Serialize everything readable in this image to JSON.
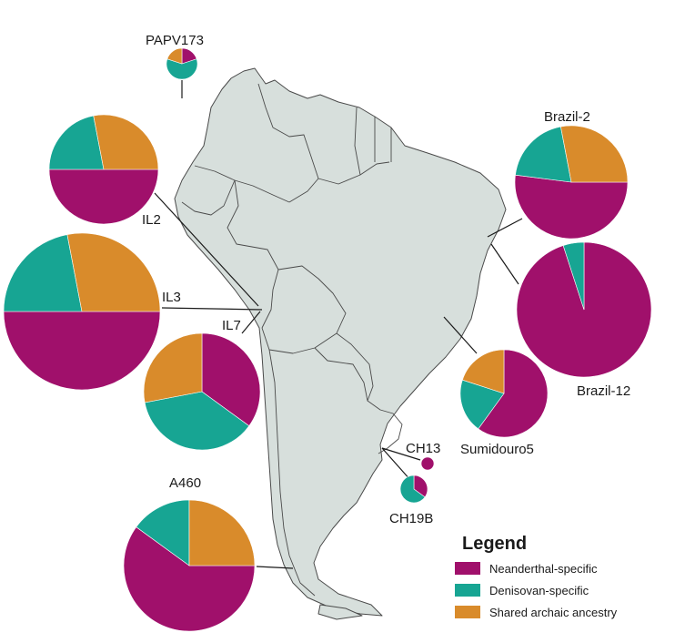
{
  "legend": {
    "title": "Legend",
    "items": [
      {
        "label": "Neanderthal-specific",
        "color": "#a0106b"
      },
      {
        "label": "Denisovan-specific",
        "color": "#17a593"
      },
      {
        "label": "Shared archaic ancestry",
        "color": "#d98b2b"
      }
    ]
  },
  "chart_data": {
    "type": "pie",
    "category_order": [
      "Neanderthal-specific",
      "Denisovan-specific",
      "Shared archaic ancestry"
    ],
    "samples": [
      {
        "label": "PAPV173",
        "values": [
          0.2,
          0.6,
          0.2
        ]
      },
      {
        "label": "IL2",
        "values": [
          0.5,
          0.22,
          0.28
        ]
      },
      {
        "label": "IL3",
        "values": [
          0.5,
          0.22,
          0.28
        ]
      },
      {
        "label": "IL7",
        "values": [
          0.35,
          0.37,
          0.28
        ]
      },
      {
        "label": "Brazil-2",
        "values": [
          0.52,
          0.2,
          0.28
        ]
      },
      {
        "label": "Brazil-12",
        "values": [
          0.95,
          0.05,
          0.0
        ]
      },
      {
        "label": "Sumidouro5",
        "values": [
          0.6,
          0.2,
          0.2
        ]
      },
      {
        "label": "CH13",
        "values": [
          1.0,
          0.0,
          0.0
        ]
      },
      {
        "label": "CH19B",
        "values": [
          0.35,
          0.65,
          0.0
        ]
      },
      {
        "label": "A460",
        "values": [
          0.6,
          0.15,
          0.25
        ]
      }
    ]
  }
}
